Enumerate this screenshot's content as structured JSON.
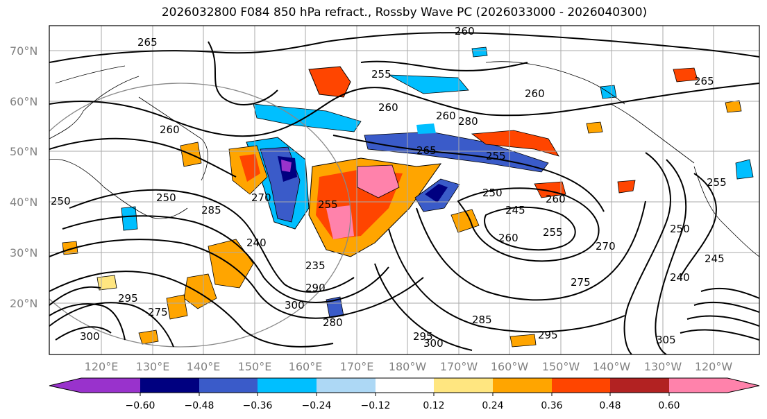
{
  "title": "2026032800 F084 850 hPa refract., Rossby Wave PC (2026033000 - 2026040300)",
  "latitude_labels": [
    "70°N",
    "60°N",
    "50°N",
    "40°N",
    "30°N",
    "20°N"
  ],
  "longitude_labels": [
    "120°E",
    "130°E",
    "140°E",
    "150°E",
    "160°E",
    "170°E",
    "180°W",
    "170°W",
    "160°W",
    "150°W",
    "140°W",
    "130°W",
    "120°W"
  ],
  "colorbar": {
    "tick_labels": [
      "−0.60",
      "−0.48",
      "−0.36",
      "−0.24",
      "−0.12",
      "0.12",
      "0.24",
      "0.36",
      "0.48",
      "0.60"
    ],
    "colors": [
      "#9932CC",
      "#000080",
      "#3A5BC9",
      "#00BFFF",
      "#ADD8F5",
      "#FFFFFF",
      "#FFE680",
      "#FFA500",
      "#FF4500",
      "#B22222",
      "#FF82AB"
    ]
  },
  "contour_labels": [
    "265",
    "260",
    "255",
    "260",
    "260",
    "280",
    "260",
    "265",
    "255",
    "265",
    "260",
    "250",
    "250",
    "285",
    "270",
    "255",
    "250",
    "245",
    "260",
    "260",
    "255",
    "270",
    "275",
    "240",
    "235",
    "290",
    "275",
    "300",
    "295",
    "280",
    "295",
    "285",
    "300",
    "295",
    "300",
    "240",
    "245",
    "250",
    "255",
    "305"
  ]
}
